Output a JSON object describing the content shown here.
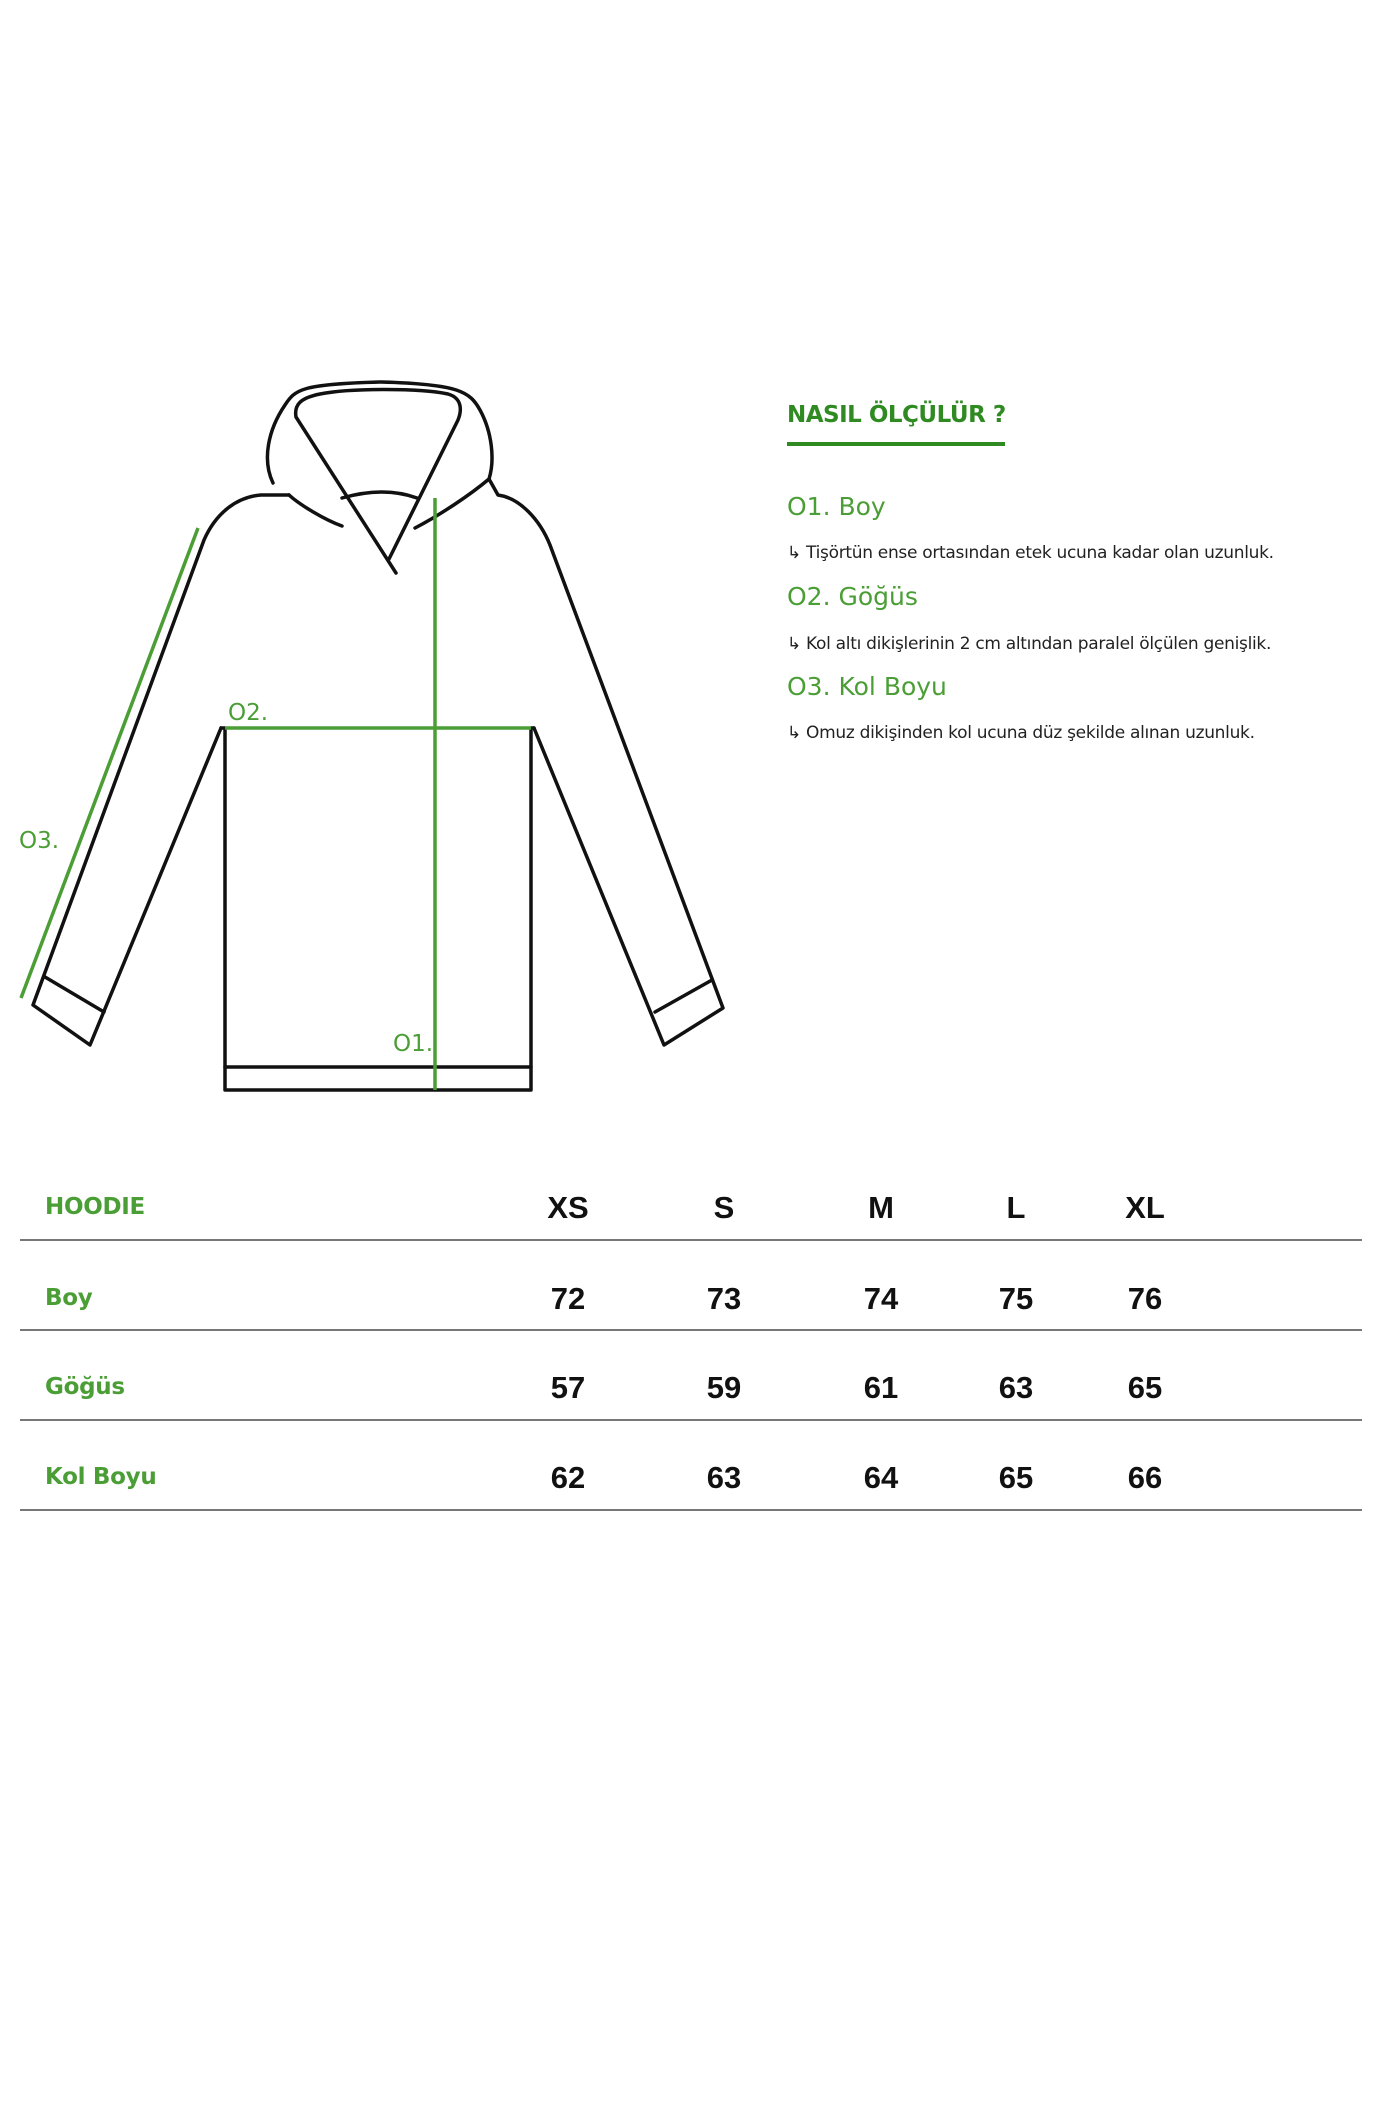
{
  "diagram": {
    "labels": {
      "length": "O1.",
      "chest": "O2.",
      "sleeve": "O3."
    },
    "colors": {
      "measure_line": "#4a9e35",
      "outline": "#111111"
    }
  },
  "guide": {
    "title": "NASIL ÖLÇÜLÜR ?",
    "steps": [
      {
        "heading": "O1. Boy",
        "description": "↳ Tişörtün ense ortasından etek ucuna kadar olan uzunluk."
      },
      {
        "heading": "O2. Göğüs",
        "description": "↳ Kol altı dikişlerinin 2 cm altından paralel ölçülen genişlik."
      },
      {
        "heading": "O3. Kol Boyu",
        "description": "↳ Omuz dikişinden kol ucuna düz şekilde alınan uzunluk."
      }
    ]
  },
  "size_table": {
    "product": "HOODIE",
    "sizes": [
      "XS",
      "S",
      "M",
      "L",
      "XL"
    ],
    "rows": [
      {
        "label": "Boy",
        "values": [
          "72",
          "73",
          "74",
          "75",
          "76"
        ]
      },
      {
        "label": "Göğüs",
        "values": [
          "57",
          "59",
          "61",
          "63",
          "65"
        ]
      },
      {
        "label": "Kol Boyu",
        "values": [
          "62",
          "63",
          "64",
          "65",
          "66"
        ]
      }
    ]
  }
}
